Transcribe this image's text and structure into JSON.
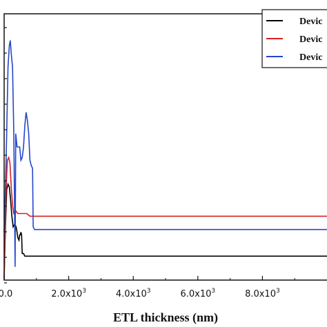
{
  "chart_data": {
    "type": "line",
    "title": "",
    "xlabel": "ETL thickness (nm)",
    "ylabel": "",
    "xlim": [
      0,
      10000
    ],
    "ylim": [
      0,
      1
    ],
    "x_ticks": [
      {
        "value": 0,
        "label": "0.0"
      },
      {
        "value": 2000,
        "label": "2.0x10",
        "exp": "3"
      },
      {
        "value": 4000,
        "label": "4.0x10",
        "exp": "3"
      },
      {
        "value": 6000,
        "label": "6.0x10",
        "exp": "3"
      },
      {
        "value": 8000,
        "label": "8.0x10",
        "exp": "3"
      }
    ],
    "legend": {
      "position": "top-right",
      "entries": [
        "Devic",
        "Devic",
        "Devic"
      ]
    },
    "series": [
      {
        "color": "#000000",
        "points": [
          [
            0,
            0.01
          ],
          [
            40,
            0.2
          ],
          [
            80,
            0.34
          ],
          [
            120,
            0.36
          ],
          [
            160,
            0.35
          ],
          [
            200,
            0.3
          ],
          [
            240,
            0.24
          ],
          [
            280,
            0.2
          ],
          [
            330,
            0.21
          ],
          [
            370,
            0.2
          ],
          [
            400,
            0.18
          ],
          [
            420,
            0.16
          ],
          [
            460,
            0.15
          ],
          [
            480,
            0.17
          ],
          [
            500,
            0.17
          ],
          [
            520,
            0.18
          ],
          [
            540,
            0.17
          ],
          [
            560,
            0.1
          ],
          [
            600,
            0.1
          ],
          [
            640,
            0.09
          ],
          [
            700,
            0.09
          ],
          [
            10000,
            0.09
          ]
        ]
      },
      {
        "color": "#d62020",
        "points": [
          [
            0,
            0.0
          ],
          [
            30,
            0.18
          ],
          [
            60,
            0.34
          ],
          [
            100,
            0.45
          ],
          [
            140,
            0.46
          ],
          [
            180,
            0.44
          ],
          [
            220,
            0.35
          ],
          [
            260,
            0.28
          ],
          [
            300,
            0.25
          ],
          [
            360,
            0.26
          ],
          [
            420,
            0.25
          ],
          [
            500,
            0.25
          ],
          [
            560,
            0.25
          ],
          [
            620,
            0.25
          ],
          [
            700,
            0.25
          ],
          [
            800,
            0.24
          ],
          [
            10000,
            0.24
          ]
        ]
      },
      {
        "color": "#2346c8",
        "points": [
          [
            0,
            0.18
          ],
          [
            40,
            0.35
          ],
          [
            80,
            0.55
          ],
          [
            120,
            0.8
          ],
          [
            160,
            0.88
          ],
          [
            190,
            0.9
          ],
          [
            220,
            0.85
          ],
          [
            260,
            0.8
          ],
          [
            300,
            0.55
          ],
          [
            320,
            0.3
          ],
          [
            340,
            0.05
          ],
          [
            360,
            0.55
          ],
          [
            400,
            0.5
          ],
          [
            440,
            0.5
          ],
          [
            480,
            0.5
          ],
          [
            520,
            0.45
          ],
          [
            560,
            0.46
          ],
          [
            600,
            0.5
          ],
          [
            640,
            0.58
          ],
          [
            680,
            0.63
          ],
          [
            720,
            0.6
          ],
          [
            760,
            0.55
          ],
          [
            800,
            0.45
          ],
          [
            840,
            0.43
          ],
          [
            880,
            0.42
          ],
          [
            900,
            0.2
          ],
          [
            940,
            0.19
          ],
          [
            10000,
            0.19
          ]
        ]
      }
    ]
  }
}
